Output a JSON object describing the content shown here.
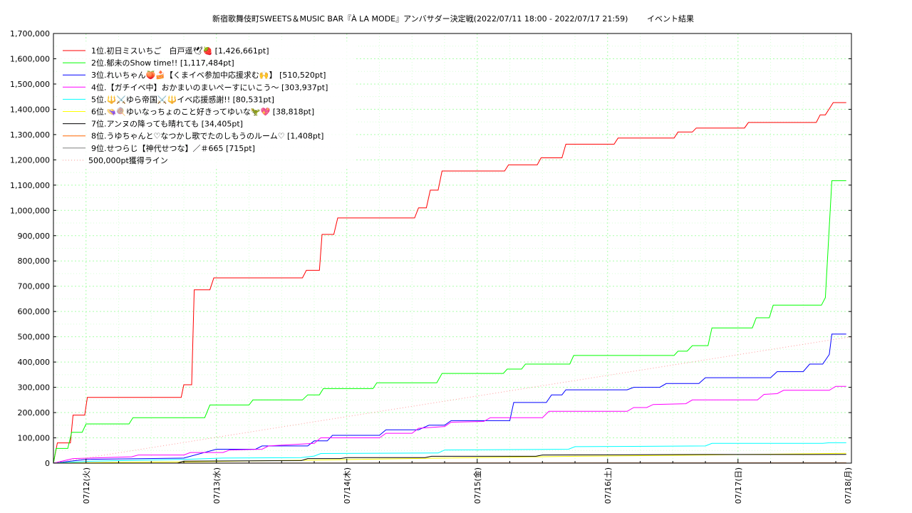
{
  "chart_data": {
    "type": "line",
    "title": "新宿歌舞伎町SWEETS＆MUSIC BAR『À LA MODE』アンバサダー決定戦(2022/07/11 18:00 - 2022/07/17 21:59)",
    "subtitle": "イベント結果",
    "xlabel": "",
    "ylabel": "",
    "xlim": [
      0,
      6.12
    ],
    "ylim": [
      0,
      1700000
    ],
    "grid": true,
    "legend_position": "top-left",
    "x_ticks": [
      {
        "x": 0.25,
        "label": "07/12(火)"
      },
      {
        "x": 1.25,
        "label": "07/13(水)"
      },
      {
        "x": 2.25,
        "label": "07/14(木)"
      },
      {
        "x": 3.25,
        "label": "07/15(金)"
      },
      {
        "x": 4.25,
        "label": "07/16(土)"
      },
      {
        "x": 5.25,
        "label": "07/17(日)"
      },
      {
        "x": 6.25,
        "label": "07/18(月)"
      }
    ],
    "y_ticks": [
      0,
      100000,
      200000,
      300000,
      400000,
      500000,
      600000,
      700000,
      800000,
      900000,
      1000000,
      1100000,
      1200000,
      1300000,
      1400000,
      1500000,
      1600000,
      1700000
    ],
    "y_tick_labels": [
      "0",
      "100,000",
      "200,000",
      "300,000",
      "400,000",
      "500,000",
      "600,000",
      "700,000",
      "800,000",
      "900,000",
      "1,000,000",
      "1,100,000",
      "1,200,000",
      "1,300,000",
      "1,400,000",
      "1,500,000",
      "1,600,000",
      "1,700,000"
    ],
    "series": [
      {
        "name": "1位.初日ミスいちご　白戸遥🕊🍓 [1,426,661pt]",
        "color": "#ff0000",
        "dash": "",
        "points": [
          [
            0,
            0
          ],
          [
            0.03,
            80000
          ],
          [
            0.13,
            80000
          ],
          [
            0.15,
            190000
          ],
          [
            0.24,
            190000
          ],
          [
            0.26,
            260000
          ],
          [
            0.98,
            260000
          ],
          [
            1.0,
            310000
          ],
          [
            1.06,
            310000
          ],
          [
            1.08,
            686000
          ],
          [
            1.2,
            686000
          ],
          [
            1.23,
            733000
          ],
          [
            1.91,
            733000
          ],
          [
            1.94,
            763000
          ],
          [
            2.04,
            763000
          ],
          [
            2.06,
            905000
          ],
          [
            2.15,
            905000
          ],
          [
            2.18,
            970000
          ],
          [
            2.77,
            970000
          ],
          [
            2.8,
            1010000
          ],
          [
            2.86,
            1010000
          ],
          [
            2.89,
            1080000
          ],
          [
            2.95,
            1080000
          ],
          [
            2.98,
            1156000
          ],
          [
            3.46,
            1156000
          ],
          [
            3.49,
            1180000
          ],
          [
            3.71,
            1180000
          ],
          [
            3.74,
            1208000
          ],
          [
            3.9,
            1208000
          ],
          [
            3.93,
            1262000
          ],
          [
            4.3,
            1262000
          ],
          [
            4.33,
            1286000
          ],
          [
            4.76,
            1286000
          ],
          [
            4.79,
            1310000
          ],
          [
            4.9,
            1310000
          ],
          [
            4.93,
            1326000
          ],
          [
            5.3,
            1326000
          ],
          [
            5.33,
            1348000
          ],
          [
            5.85,
            1348000
          ],
          [
            5.88,
            1378000
          ],
          [
            5.92,
            1378000
          ],
          [
            5.96,
            1410000
          ],
          [
            5.98,
            1426661
          ],
          [
            6.08,
            1426661
          ]
        ]
      },
      {
        "name": "2位.郁未のShow time!! [1,117,484pt]",
        "color": "#00ff00",
        "dash": "",
        "points": [
          [
            0,
            0
          ],
          [
            0.02,
            58000
          ],
          [
            0.11,
            58000
          ],
          [
            0.14,
            122000
          ],
          [
            0.22,
            122000
          ],
          [
            0.25,
            155000
          ],
          [
            0.58,
            155000
          ],
          [
            0.61,
            180000
          ],
          [
            1.16,
            180000
          ],
          [
            1.2,
            230000
          ],
          [
            1.5,
            230000
          ],
          [
            1.53,
            250000
          ],
          [
            1.91,
            250000
          ],
          [
            1.95,
            270000
          ],
          [
            2.04,
            270000
          ],
          [
            2.07,
            295000
          ],
          [
            2.45,
            295000
          ],
          [
            2.48,
            318000
          ],
          [
            2.94,
            318000
          ],
          [
            2.98,
            355000
          ],
          [
            3.45,
            355000
          ],
          [
            3.48,
            372000
          ],
          [
            3.59,
            372000
          ],
          [
            3.62,
            392000
          ],
          [
            3.96,
            392000
          ],
          [
            3.99,
            426000
          ],
          [
            4.76,
            426000
          ],
          [
            4.79,
            443000
          ],
          [
            4.86,
            443000
          ],
          [
            4.9,
            465000
          ],
          [
            5.02,
            465000
          ],
          [
            5.05,
            535000
          ],
          [
            5.36,
            535000
          ],
          [
            5.39,
            575000
          ],
          [
            5.49,
            575000
          ],
          [
            5.52,
            625000
          ],
          [
            5.89,
            625000
          ],
          [
            5.92,
            655000
          ],
          [
            5.97,
            1117484
          ],
          [
            6.08,
            1117484
          ]
        ]
      },
      {
        "name": "3位.れいちゃん🍑🍰【くまイベ参加中応援求む🙌】 [510,520pt]",
        "color": "#0000ff",
        "dash": "",
        "points": [
          [
            0,
            0
          ],
          [
            0.25,
            15000
          ],
          [
            1.0,
            20000
          ],
          [
            1.25,
            55000
          ],
          [
            1.55,
            55000
          ],
          [
            1.6,
            68000
          ],
          [
            1.95,
            68000
          ],
          [
            2.0,
            88000
          ],
          [
            2.1,
            88000
          ],
          [
            2.14,
            110000
          ],
          [
            2.5,
            110000
          ],
          [
            2.55,
            132000
          ],
          [
            2.8,
            132000
          ],
          [
            2.88,
            150000
          ],
          [
            3.0,
            150000
          ],
          [
            3.05,
            168000
          ],
          [
            3.5,
            168000
          ],
          [
            3.53,
            240000
          ],
          [
            3.78,
            240000
          ],
          [
            3.82,
            270000
          ],
          [
            3.9,
            270000
          ],
          [
            3.93,
            290000
          ],
          [
            4.4,
            290000
          ],
          [
            4.45,
            300000
          ],
          [
            4.65,
            300000
          ],
          [
            4.7,
            315000
          ],
          [
            4.95,
            315000
          ],
          [
            5.0,
            338000
          ],
          [
            5.5,
            338000
          ],
          [
            5.55,
            362000
          ],
          [
            5.75,
            362000
          ],
          [
            5.8,
            392000
          ],
          [
            5.9,
            392000
          ],
          [
            5.95,
            430000
          ],
          [
            5.97,
            510520
          ],
          [
            6.08,
            510520
          ]
        ]
      },
      {
        "name": "4位.【ガチイベ中】おかまいのまいぺーすにいこう〜 [303,937pt]",
        "color": "#ff00ff",
        "dash": "",
        "points": [
          [
            0,
            0
          ],
          [
            0.15,
            18000
          ],
          [
            0.6,
            25000
          ],
          [
            0.65,
            32000
          ],
          [
            1.0,
            32000
          ],
          [
            1.05,
            42000
          ],
          [
            1.3,
            42000
          ],
          [
            1.35,
            52000
          ],
          [
            1.6,
            55000
          ],
          [
            1.65,
            68000
          ],
          [
            2.0,
            78000
          ],
          [
            2.05,
            100000
          ],
          [
            2.5,
            100000
          ],
          [
            2.55,
            118000
          ],
          [
            2.75,
            118000
          ],
          [
            2.8,
            138000
          ],
          [
            3.0,
            145000
          ],
          [
            3.05,
            162000
          ],
          [
            3.3,
            165000
          ],
          [
            3.35,
            180000
          ],
          [
            3.75,
            180000
          ],
          [
            3.8,
            205000
          ],
          [
            4.4,
            205000
          ],
          [
            4.45,
            220000
          ],
          [
            4.55,
            220000
          ],
          [
            4.6,
            232000
          ],
          [
            4.85,
            235000
          ],
          [
            4.9,
            250000
          ],
          [
            5.4,
            250000
          ],
          [
            5.45,
            272000
          ],
          [
            5.55,
            275000
          ],
          [
            5.6,
            288000
          ],
          [
            5.95,
            288000
          ],
          [
            6.0,
            303937
          ],
          [
            6.08,
            303937
          ]
        ]
      },
      {
        "name": "5位.🔱⚔️ゆら帝国⚔️🔱イベ応援感謝!! [80,531pt]",
        "color": "#00ffff",
        "dash": "",
        "points": [
          [
            0,
            0
          ],
          [
            0.3,
            8000
          ],
          [
            1.0,
            15000
          ],
          [
            1.3,
            20000
          ],
          [
            1.9,
            22000
          ],
          [
            2.0,
            28000
          ],
          [
            2.05,
            38000
          ],
          [
            2.95,
            40000
          ],
          [
            3.0,
            52000
          ],
          [
            3.95,
            55000
          ],
          [
            4.0,
            65000
          ],
          [
            5.0,
            68000
          ],
          [
            5.05,
            78000
          ],
          [
            5.9,
            78000
          ],
          [
            5.95,
            80531
          ],
          [
            6.08,
            80531
          ]
        ]
      },
      {
        "name": "6位.👒🍭ゆいなっちょのこと好きってゆいな🦖💖 [38,818pt]",
        "color": "#ffff00",
        "dash": "",
        "points": [
          [
            0,
            0
          ],
          [
            0.5,
            3000
          ],
          [
            1.0,
            5000
          ],
          [
            2.0,
            12000
          ],
          [
            3.0,
            20000
          ],
          [
            4.0,
            27000
          ],
          [
            5.0,
            32000
          ],
          [
            6.08,
            38818
          ]
        ]
      },
      {
        "name": "7位.アンヌの降っても晴れても [34,405pt]",
        "color": "#000000",
        "dash": "",
        "points": [
          [
            0,
            0
          ],
          [
            0.95,
            0
          ],
          [
            1.0,
            8000
          ],
          [
            1.9,
            10000
          ],
          [
            1.95,
            18000
          ],
          [
            2.2,
            18000
          ],
          [
            2.25,
            22000
          ],
          [
            2.85,
            22000
          ],
          [
            2.9,
            27000
          ],
          [
            3.7,
            27000
          ],
          [
            3.75,
            32000
          ],
          [
            5.0,
            34000
          ],
          [
            6.08,
            34405
          ]
        ]
      },
      {
        "name": "8位.うゆちゃんと♡なつかし歌でたのしもうのルーム♡ [1,408pt]",
        "color": "#ff6600",
        "dash": "",
        "points": [
          [
            0,
            0
          ],
          [
            3.0,
            700
          ],
          [
            6.08,
            1408
          ]
        ]
      },
      {
        "name": "9位.せつらじ【神代せつな】／＃665 [715pt]",
        "color": "#808080",
        "dash": "",
        "points": [
          [
            0,
            0
          ],
          [
            3.0,
            400
          ],
          [
            6.08,
            715
          ]
        ]
      },
      {
        "name": "500,000pt獲得ライン",
        "color": "#ff9999",
        "dash": "1,3",
        "points": [
          [
            0,
            0
          ],
          [
            6.12,
            500000
          ]
        ]
      }
    ]
  }
}
